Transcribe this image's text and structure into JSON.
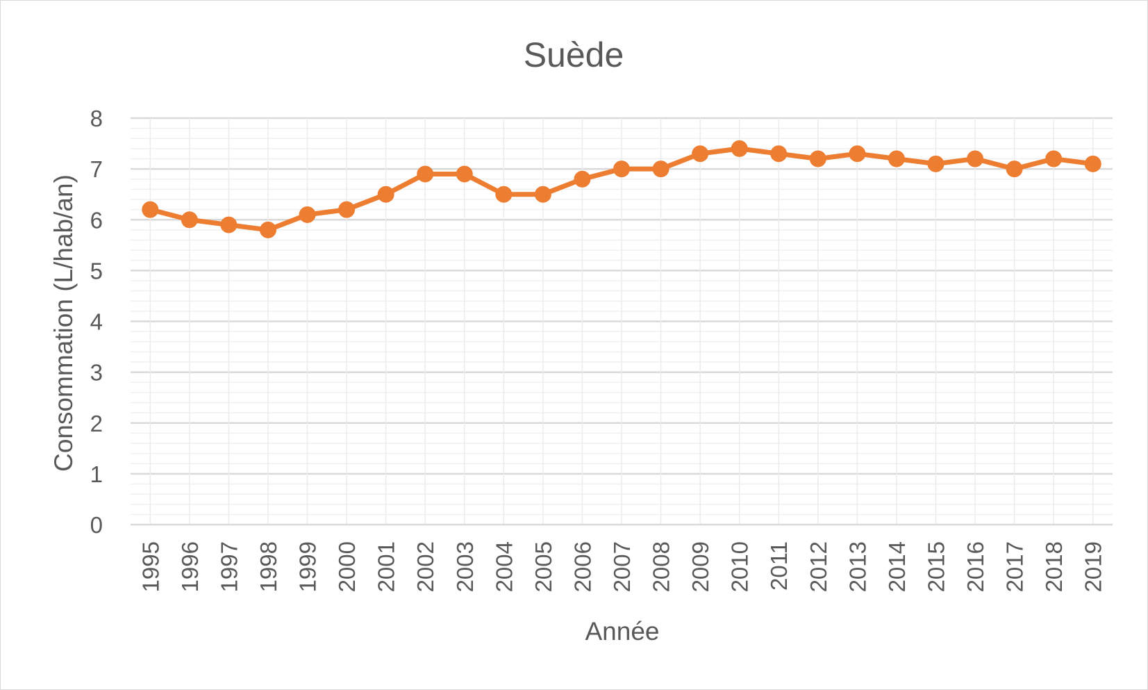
{
  "chart_data": {
    "type": "line",
    "title": "Suède",
    "xlabel": "Année",
    "ylabel": "Consommation (L/hab/an)",
    "ylim": [
      0,
      8
    ],
    "y_ticks": [
      "0",
      "1",
      "2",
      "3",
      "4",
      "5",
      "6",
      "7",
      "8"
    ],
    "grid": true,
    "minor_grid": true,
    "legend": "none",
    "line_color": "#ed7d31",
    "categories": [
      "1995",
      "1996",
      "1997",
      "1998",
      "1999",
      "2000",
      "2001",
      "2002",
      "2003",
      "2004",
      "2005",
      "2006",
      "2007",
      "2008",
      "2009",
      "2010",
      "2011",
      "2012",
      "2013",
      "2014",
      "2015",
      "2016",
      "2017",
      "2018",
      "2019"
    ],
    "series": [
      {
        "values": [
          6.2,
          6.0,
          5.9,
          5.8,
          6.1,
          6.2,
          6.5,
          6.9,
          6.9,
          6.5,
          6.5,
          6.8,
          7.0,
          7.0,
          7.3,
          7.4,
          7.3,
          7.2,
          7.3,
          7.2,
          7.1,
          7.2,
          7.0,
          7.2,
          7.1
        ]
      }
    ]
  }
}
